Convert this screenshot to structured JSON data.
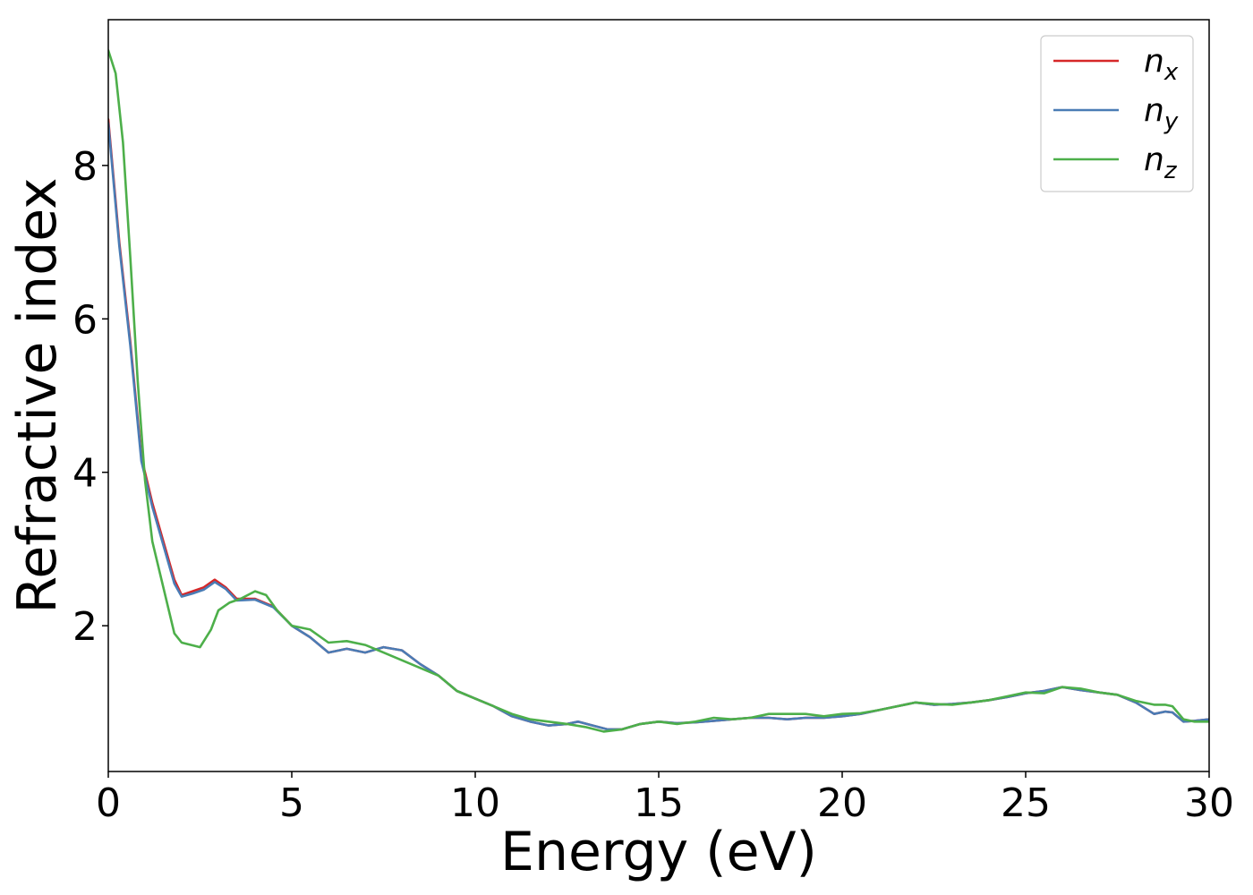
{
  "chart_data": {
    "type": "line",
    "title": "",
    "xlabel": "Energy (eV)",
    "ylabel": "Refractive index",
    "xlim": [
      0,
      30
    ],
    "ylim": [
      0.1,
      9.9
    ],
    "xticks": [
      0,
      5,
      10,
      15,
      20,
      25,
      30
    ],
    "yticks": [
      2,
      4,
      6,
      8
    ],
    "grid": false,
    "legend_position": "top-right",
    "series": [
      {
        "name": "n_x",
        "label_main": "n",
        "label_sub": "x",
        "color": "#d62728",
        "x": [
          0,
          0.3,
          0.6,
          0.9,
          1.2,
          1.5,
          1.8,
          2.0,
          2.3,
          2.6,
          2.9,
          3.2,
          3.5,
          4.0,
          4.5,
          5.0,
          5.5,
          6.0,
          6.5,
          7.0,
          7.5,
          8.0,
          8.5,
          9.0,
          9.5,
          10.0,
          10.5,
          11.0,
          11.5,
          12.0,
          12.5,
          12.8,
          13.2,
          13.6,
          14.0,
          14.5,
          15.0,
          15.5,
          16.0,
          16.5,
          17.0,
          17.5,
          18.0,
          18.5,
          19.0,
          19.5,
          20.0,
          20.5,
          21.0,
          21.5,
          22.0,
          22.5,
          23.0,
          23.5,
          24.0,
          24.5,
          25.0,
          25.5,
          26.0,
          26.5,
          27.0,
          27.5,
          28.0,
          28.5,
          28.8,
          29.0,
          29.3,
          29.6,
          30.0
        ],
        "y": [
          8.6,
          7.0,
          5.7,
          4.2,
          3.6,
          3.1,
          2.6,
          2.4,
          2.45,
          2.5,
          2.6,
          2.5,
          2.35,
          2.35,
          2.25,
          2.0,
          1.85,
          1.65,
          1.7,
          1.65,
          1.72,
          1.68,
          1.5,
          1.35,
          1.15,
          1.05,
          0.95,
          0.82,
          0.75,
          0.7,
          0.72,
          0.75,
          0.7,
          0.65,
          0.65,
          0.72,
          0.75,
          0.73,
          0.74,
          0.76,
          0.78,
          0.8,
          0.8,
          0.78,
          0.8,
          0.8,
          0.82,
          0.85,
          0.9,
          0.95,
          1.0,
          0.97,
          0.98,
          1.0,
          1.03,
          1.07,
          1.12,
          1.15,
          1.2,
          1.16,
          1.13,
          1.1,
          1.0,
          0.85,
          0.88,
          0.87,
          0.75,
          0.76,
          0.78
        ]
      },
      {
        "name": "n_y",
        "label_main": "n",
        "label_sub": "y",
        "color": "#4a7cb5",
        "x": [
          0,
          0.3,
          0.6,
          0.9,
          1.2,
          1.5,
          1.8,
          2.0,
          2.3,
          2.6,
          2.9,
          3.2,
          3.5,
          4.0,
          4.5,
          5.0,
          5.5,
          6.0,
          6.5,
          7.0,
          7.5,
          8.0,
          8.5,
          9.0,
          9.5,
          10.0,
          10.5,
          11.0,
          11.5,
          12.0,
          12.5,
          12.8,
          13.2,
          13.6,
          14.0,
          14.5,
          15.0,
          15.5,
          16.0,
          16.5,
          17.0,
          17.5,
          18.0,
          18.5,
          19.0,
          19.5,
          20.0,
          20.5,
          21.0,
          21.5,
          22.0,
          22.5,
          23.0,
          23.5,
          24.0,
          24.5,
          25.0,
          25.5,
          26.0,
          26.5,
          27.0,
          27.5,
          28.0,
          28.5,
          28.8,
          29.0,
          29.3,
          29.6,
          30.0
        ],
        "y": [
          8.55,
          6.95,
          5.65,
          4.15,
          3.55,
          3.05,
          2.55,
          2.38,
          2.42,
          2.47,
          2.57,
          2.48,
          2.33,
          2.34,
          2.24,
          2.0,
          1.85,
          1.65,
          1.7,
          1.65,
          1.72,
          1.68,
          1.5,
          1.35,
          1.15,
          1.05,
          0.95,
          0.82,
          0.75,
          0.7,
          0.72,
          0.75,
          0.7,
          0.65,
          0.65,
          0.72,
          0.75,
          0.73,
          0.74,
          0.76,
          0.78,
          0.8,
          0.8,
          0.78,
          0.8,
          0.8,
          0.82,
          0.85,
          0.9,
          0.95,
          1.0,
          0.97,
          0.98,
          1.0,
          1.03,
          1.07,
          1.12,
          1.15,
          1.2,
          1.16,
          1.13,
          1.1,
          1.0,
          0.85,
          0.88,
          0.87,
          0.75,
          0.76,
          0.78
        ]
      },
      {
        "name": "n_z",
        "label_main": "n",
        "label_sub": "z",
        "color": "#4daf4a",
        "x": [
          0,
          0.2,
          0.4,
          0.6,
          0.8,
          1.0,
          1.2,
          1.5,
          1.8,
          2.0,
          2.5,
          2.8,
          3.0,
          3.3,
          3.6,
          4.0,
          4.3,
          4.6,
          5.0,
          5.5,
          6.0,
          6.5,
          7.0,
          7.5,
          8.0,
          8.5,
          9.0,
          9.5,
          10.0,
          10.5,
          11.0,
          11.5,
          12.0,
          12.5,
          13.0,
          13.5,
          14.0,
          14.5,
          15.0,
          15.5,
          16.0,
          16.5,
          17.0,
          17.5,
          18.0,
          18.5,
          19.0,
          19.5,
          20.0,
          20.5,
          21.0,
          21.5,
          22.0,
          22.5,
          23.0,
          23.5,
          24.0,
          24.5,
          25.0,
          25.5,
          26.0,
          26.5,
          27.0,
          27.5,
          28.0,
          28.5,
          28.8,
          29.0,
          29.3,
          29.6,
          30.0
        ],
        "y": [
          9.5,
          9.2,
          8.3,
          6.8,
          5.2,
          3.9,
          3.1,
          2.5,
          1.9,
          1.78,
          1.72,
          1.95,
          2.2,
          2.3,
          2.35,
          2.45,
          2.4,
          2.2,
          2.0,
          1.95,
          1.78,
          1.8,
          1.75,
          1.65,
          1.55,
          1.45,
          1.35,
          1.15,
          1.05,
          0.95,
          0.85,
          0.78,
          0.75,
          0.72,
          0.68,
          0.62,
          0.65,
          0.72,
          0.75,
          0.72,
          0.75,
          0.8,
          0.78,
          0.8,
          0.85,
          0.85,
          0.85,
          0.82,
          0.85,
          0.86,
          0.9,
          0.95,
          1.0,
          0.98,
          0.97,
          1.0,
          1.03,
          1.08,
          1.13,
          1.12,
          1.2,
          1.18,
          1.13,
          1.1,
          1.02,
          0.97,
          0.97,
          0.95,
          0.78,
          0.75,
          0.75
        ]
      }
    ]
  }
}
